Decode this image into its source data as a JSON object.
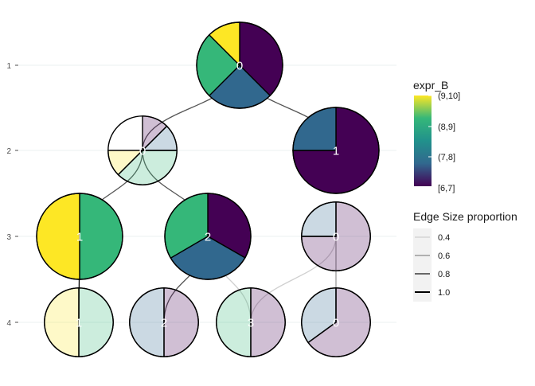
{
  "chart_data": {
    "type": "clustering-tree",
    "y_axis": {
      "ticks": [
        "1",
        "2",
        "3",
        "4"
      ]
    },
    "color_legend": {
      "title": "expr_B",
      "labels": [
        "(9,10]",
        "(8,9]",
        "(7,8]",
        "[6,7]"
      ],
      "gradient": [
        "#fde725",
        "#35b779",
        "#21918c",
        "#31688e",
        "#440154"
      ]
    },
    "edge_legend": {
      "title": "Edge Size proportion",
      "items": [
        {
          "label": "0.4",
          "color": "#d0d0d0"
        },
        {
          "label": "0.6",
          "color": "#9a9a9a"
        },
        {
          "label": "0.8",
          "color": "#555555"
        },
        {
          "label": "1.0",
          "color": "#000000"
        }
      ]
    },
    "nodes": [
      {
        "id": "r1c0",
        "level": "1",
        "label": "0",
        "size": 1.0,
        "opacity": 1.0,
        "slices": [
          {
            "fraction": 0.375,
            "color": "#440154"
          },
          {
            "fraction": 0.25,
            "color": "#31688e"
          },
          {
            "fraction": 0.25,
            "color": "#35b779"
          },
          {
            "fraction": 0.125,
            "color": "#fde725"
          }
        ]
      },
      {
        "id": "r2c0",
        "level": "2",
        "label": "0",
        "size": 0.8,
        "opacity": 0.25,
        "slices": [
          {
            "fraction": 0.125,
            "color": "#440154"
          },
          {
            "fraction": 0.125,
            "color": "#31688e"
          },
          {
            "fraction": 0.375,
            "color": "#35b779"
          },
          {
            "fraction": 0.125,
            "color": "#fde725"
          }
        ]
      },
      {
        "id": "r2c1",
        "level": "2",
        "label": "1",
        "size": 1.0,
        "opacity": 1.0,
        "slices": [
          {
            "fraction": 0.75,
            "color": "#440154"
          },
          {
            "fraction": 0.25,
            "color": "#31688e"
          }
        ]
      },
      {
        "id": "r3c1",
        "level": "3",
        "label": "1",
        "size": 1.0,
        "opacity": 1.0,
        "slices": [
          {
            "fraction": 0.5,
            "color": "#35b779"
          },
          {
            "fraction": 0.5,
            "color": "#fde725"
          }
        ]
      },
      {
        "id": "r3c2",
        "level": "3",
        "label": "2",
        "size": 1.0,
        "opacity": 1.0,
        "slices": [
          {
            "fraction": 0.333,
            "color": "#440154"
          },
          {
            "fraction": 0.333,
            "color": "#31688e"
          },
          {
            "fraction": 0.334,
            "color": "#35b779"
          }
        ]
      },
      {
        "id": "r3c0",
        "level": "3",
        "label": "0",
        "size": 0.8,
        "opacity": 0.25,
        "slices": [
          {
            "fraction": 0.75,
            "color": "#440154"
          },
          {
            "fraction": 0.25,
            "color": "#31688e"
          }
        ]
      },
      {
        "id": "r4c1",
        "level": "4",
        "label": "1",
        "size": 0.8,
        "opacity": 0.25,
        "slices": [
          {
            "fraction": 0.5,
            "color": "#35b779"
          },
          {
            "fraction": 0.5,
            "color": "#fde725"
          }
        ]
      },
      {
        "id": "r4c2",
        "level": "4",
        "label": "2",
        "size": 0.8,
        "opacity": 0.25,
        "slices": [
          {
            "fraction": 0.5,
            "color": "#440154"
          },
          {
            "fraction": 0.5,
            "color": "#31688e"
          }
        ]
      },
      {
        "id": "r4c3",
        "level": "4",
        "label": "3",
        "size": 0.8,
        "opacity": 0.25,
        "slices": [
          {
            "fraction": 0.5,
            "color": "#440154"
          },
          {
            "fraction": 0.5,
            "color": "#35b779"
          }
        ]
      },
      {
        "id": "r4c0",
        "level": "4",
        "label": "0",
        "size": 0.8,
        "opacity": 0.25,
        "slices": [
          {
            "fraction": 0.65,
            "color": "#440154"
          },
          {
            "fraction": 0.35,
            "color": "#31688e"
          }
        ]
      }
    ],
    "edges": [
      {
        "from": "r1c0",
        "to": "r2c0",
        "proportion": 0.8
      },
      {
        "from": "r1c0",
        "to": "r2c1",
        "proportion": 0.8
      },
      {
        "from": "r2c0",
        "to": "r3c1",
        "proportion": 0.8
      },
      {
        "from": "r2c0",
        "to": "r3c2",
        "proportion": 0.8
      },
      {
        "from": "r3c1",
        "to": "r4c1",
        "proportion": 1.0
      },
      {
        "from": "r3c2",
        "to": "r4c2",
        "proportion": 0.8
      },
      {
        "from": "r3c2",
        "to": "r4c3",
        "proportion": 0.4
      },
      {
        "from": "r3c0",
        "to": "r4c3",
        "proportion": 0.4
      },
      {
        "from": "r3c0",
        "to": "r4c0",
        "proportion": 0.6
      }
    ]
  }
}
